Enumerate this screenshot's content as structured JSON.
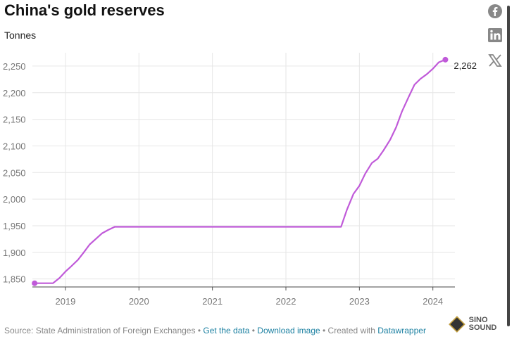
{
  "header": {
    "title": "China's gold reserves",
    "subtitle": "Tonnes"
  },
  "footer": {
    "source": "Source: State Administration of Foreign Exchanges",
    "sep1": " • ",
    "get_data": "Get the data",
    "sep2": " • ",
    "download": "Download image",
    "sep3": " • Created with ",
    "datawrapper": "Datawrapper"
  },
  "social": {
    "facebook_icon": "facebook-icon",
    "linkedin_icon": "linkedin-icon",
    "x_icon": "x-icon"
  },
  "logo": {
    "text": "SINO SOUND"
  },
  "colors": {
    "line": "#c05ad9",
    "grid": "#e6e6e6",
    "tick": "#777777"
  },
  "chart_data": {
    "type": "line",
    "title": "China's gold reserves",
    "ylabel": "Tonnes",
    "xlabel": "",
    "xlim": [
      2018.55,
      2024.3
    ],
    "ylim": [
      1835,
      2275
    ],
    "yticks": [
      1850,
      1900,
      1950,
      2000,
      2050,
      2100,
      2150,
      2200,
      2250
    ],
    "ytick_labels": [
      "1,850",
      "1,900",
      "1,950",
      "2,000",
      "2,050",
      "2,100",
      "2,150",
      "2,200",
      "2,250"
    ],
    "xticks": [
      2019,
      2020,
      2021,
      2022,
      2023,
      2024
    ],
    "xtick_labels": [
      "2019",
      "2020",
      "2021",
      "2022",
      "2023",
      "2024"
    ],
    "grid": true,
    "series": [
      {
        "values_x": [
          2018.58,
          2018.83,
          2018.92,
          2019.0,
          2019.08,
          2019.17,
          2019.25,
          2019.33,
          2019.42,
          2019.5,
          2019.58,
          2019.67,
          2019.75,
          2020.0,
          2021.0,
          2022.0,
          2022.5,
          2022.75,
          2022.83,
          2022.92,
          2023.0,
          2023.08,
          2023.17,
          2023.25,
          2023.33,
          2023.42,
          2023.5,
          2023.58,
          2023.67,
          2023.75,
          2023.83,
          2023.92,
          2024.0,
          2024.08,
          2024.17
        ],
        "values_y": [
          1842,
          1842,
          1852,
          1864,
          1874,
          1886,
          1900,
          1915,
          1926,
          1936,
          1942,
          1948,
          1948,
          1948,
          1948,
          1948,
          1948,
          1948,
          1980,
          2010,
          2025,
          2048,
          2068,
          2076,
          2092,
          2112,
          2135,
          2165,
          2192,
          2215,
          2226,
          2235,
          2245,
          2257,
          2262
        ]
      }
    ],
    "end_label": "2,262"
  }
}
